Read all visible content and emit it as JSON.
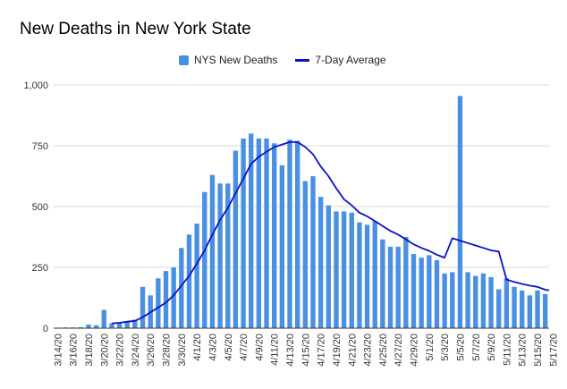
{
  "chart_data": {
    "type": "bar",
    "title": "New Deaths in New York State",
    "legend": [
      {
        "name": "NYS New Deaths",
        "kind": "bar"
      },
      {
        "name": "7-Day Average",
        "kind": "line"
      }
    ],
    "legend_position": "top-center",
    "colors": {
      "bars": "#4A90E2",
      "line": "#0A12C8",
      "grid": "#d9d9d9",
      "axis": "#333333"
    },
    "ylim": [
      0,
      1000
    ],
    "yticks": [
      0,
      250,
      500,
      750,
      1000
    ],
    "ytick_labels": [
      "0",
      "250",
      "500",
      "750",
      "1,000"
    ],
    "grid": true,
    "x_tick_labels": [
      "3/14/20",
      "3/16/20",
      "3/18/20",
      "3/20/20",
      "3/22/20",
      "3/24/20",
      "3/26/20",
      "3/28/20",
      "3/30/20",
      "4/1/20",
      "4/3/20",
      "4/5/20",
      "4/7/20",
      "4/9/20",
      "4/11/20",
      "4/13/20",
      "4/15/20",
      "4/17/20",
      "4/19/20",
      "4/21/20",
      "4/23/20",
      "4/25/20",
      "4/27/20",
      "4/29/20",
      "5/1/20",
      "5/3/20",
      "5/5/20",
      "5/7/20",
      "5/9/20",
      "5/11/20",
      "5/13/20",
      "5/15/20",
      "5/17/20"
    ],
    "series": [
      {
        "name": "NYS New Deaths",
        "type": "bar",
        "values": [
          2,
          3,
          3,
          4,
          15,
          12,
          75,
          20,
          24,
          25,
          35,
          170,
          135,
          205,
          235,
          250,
          330,
          385,
          430,
          560,
          630,
          595,
          595,
          730,
          780,
          800,
          780,
          780,
          760,
          670,
          775,
          770,
          605,
          625,
          540,
          505,
          480,
          480,
          475,
          435,
          425,
          440,
          365,
          335,
          335,
          375,
          305,
          290,
          300,
          280,
          225,
          230,
          955,
          230,
          215,
          225,
          210,
          160,
          205,
          170,
          155,
          135,
          155,
          140
        ]
      },
      {
        "name": "7-Day Average",
        "type": "line",
        "values": [
          null,
          null,
          null,
          null,
          null,
          null,
          null,
          20,
          22,
          27,
          30,
          45,
          65,
          85,
          105,
          135,
          175,
          215,
          265,
          320,
          385,
          445,
          495,
          555,
          615,
          675,
          705,
          725,
          745,
          755,
          765,
          765,
          745,
          715,
          665,
          625,
          575,
          530,
          505,
          475,
          460,
          440,
          420,
          400,
          385,
          365,
          345,
          330,
          318,
          302,
          290,
          370,
          360,
          350,
          340,
          330,
          320,
          315,
          200,
          190,
          182,
          175,
          170,
          158
        ]
      }
    ]
  }
}
